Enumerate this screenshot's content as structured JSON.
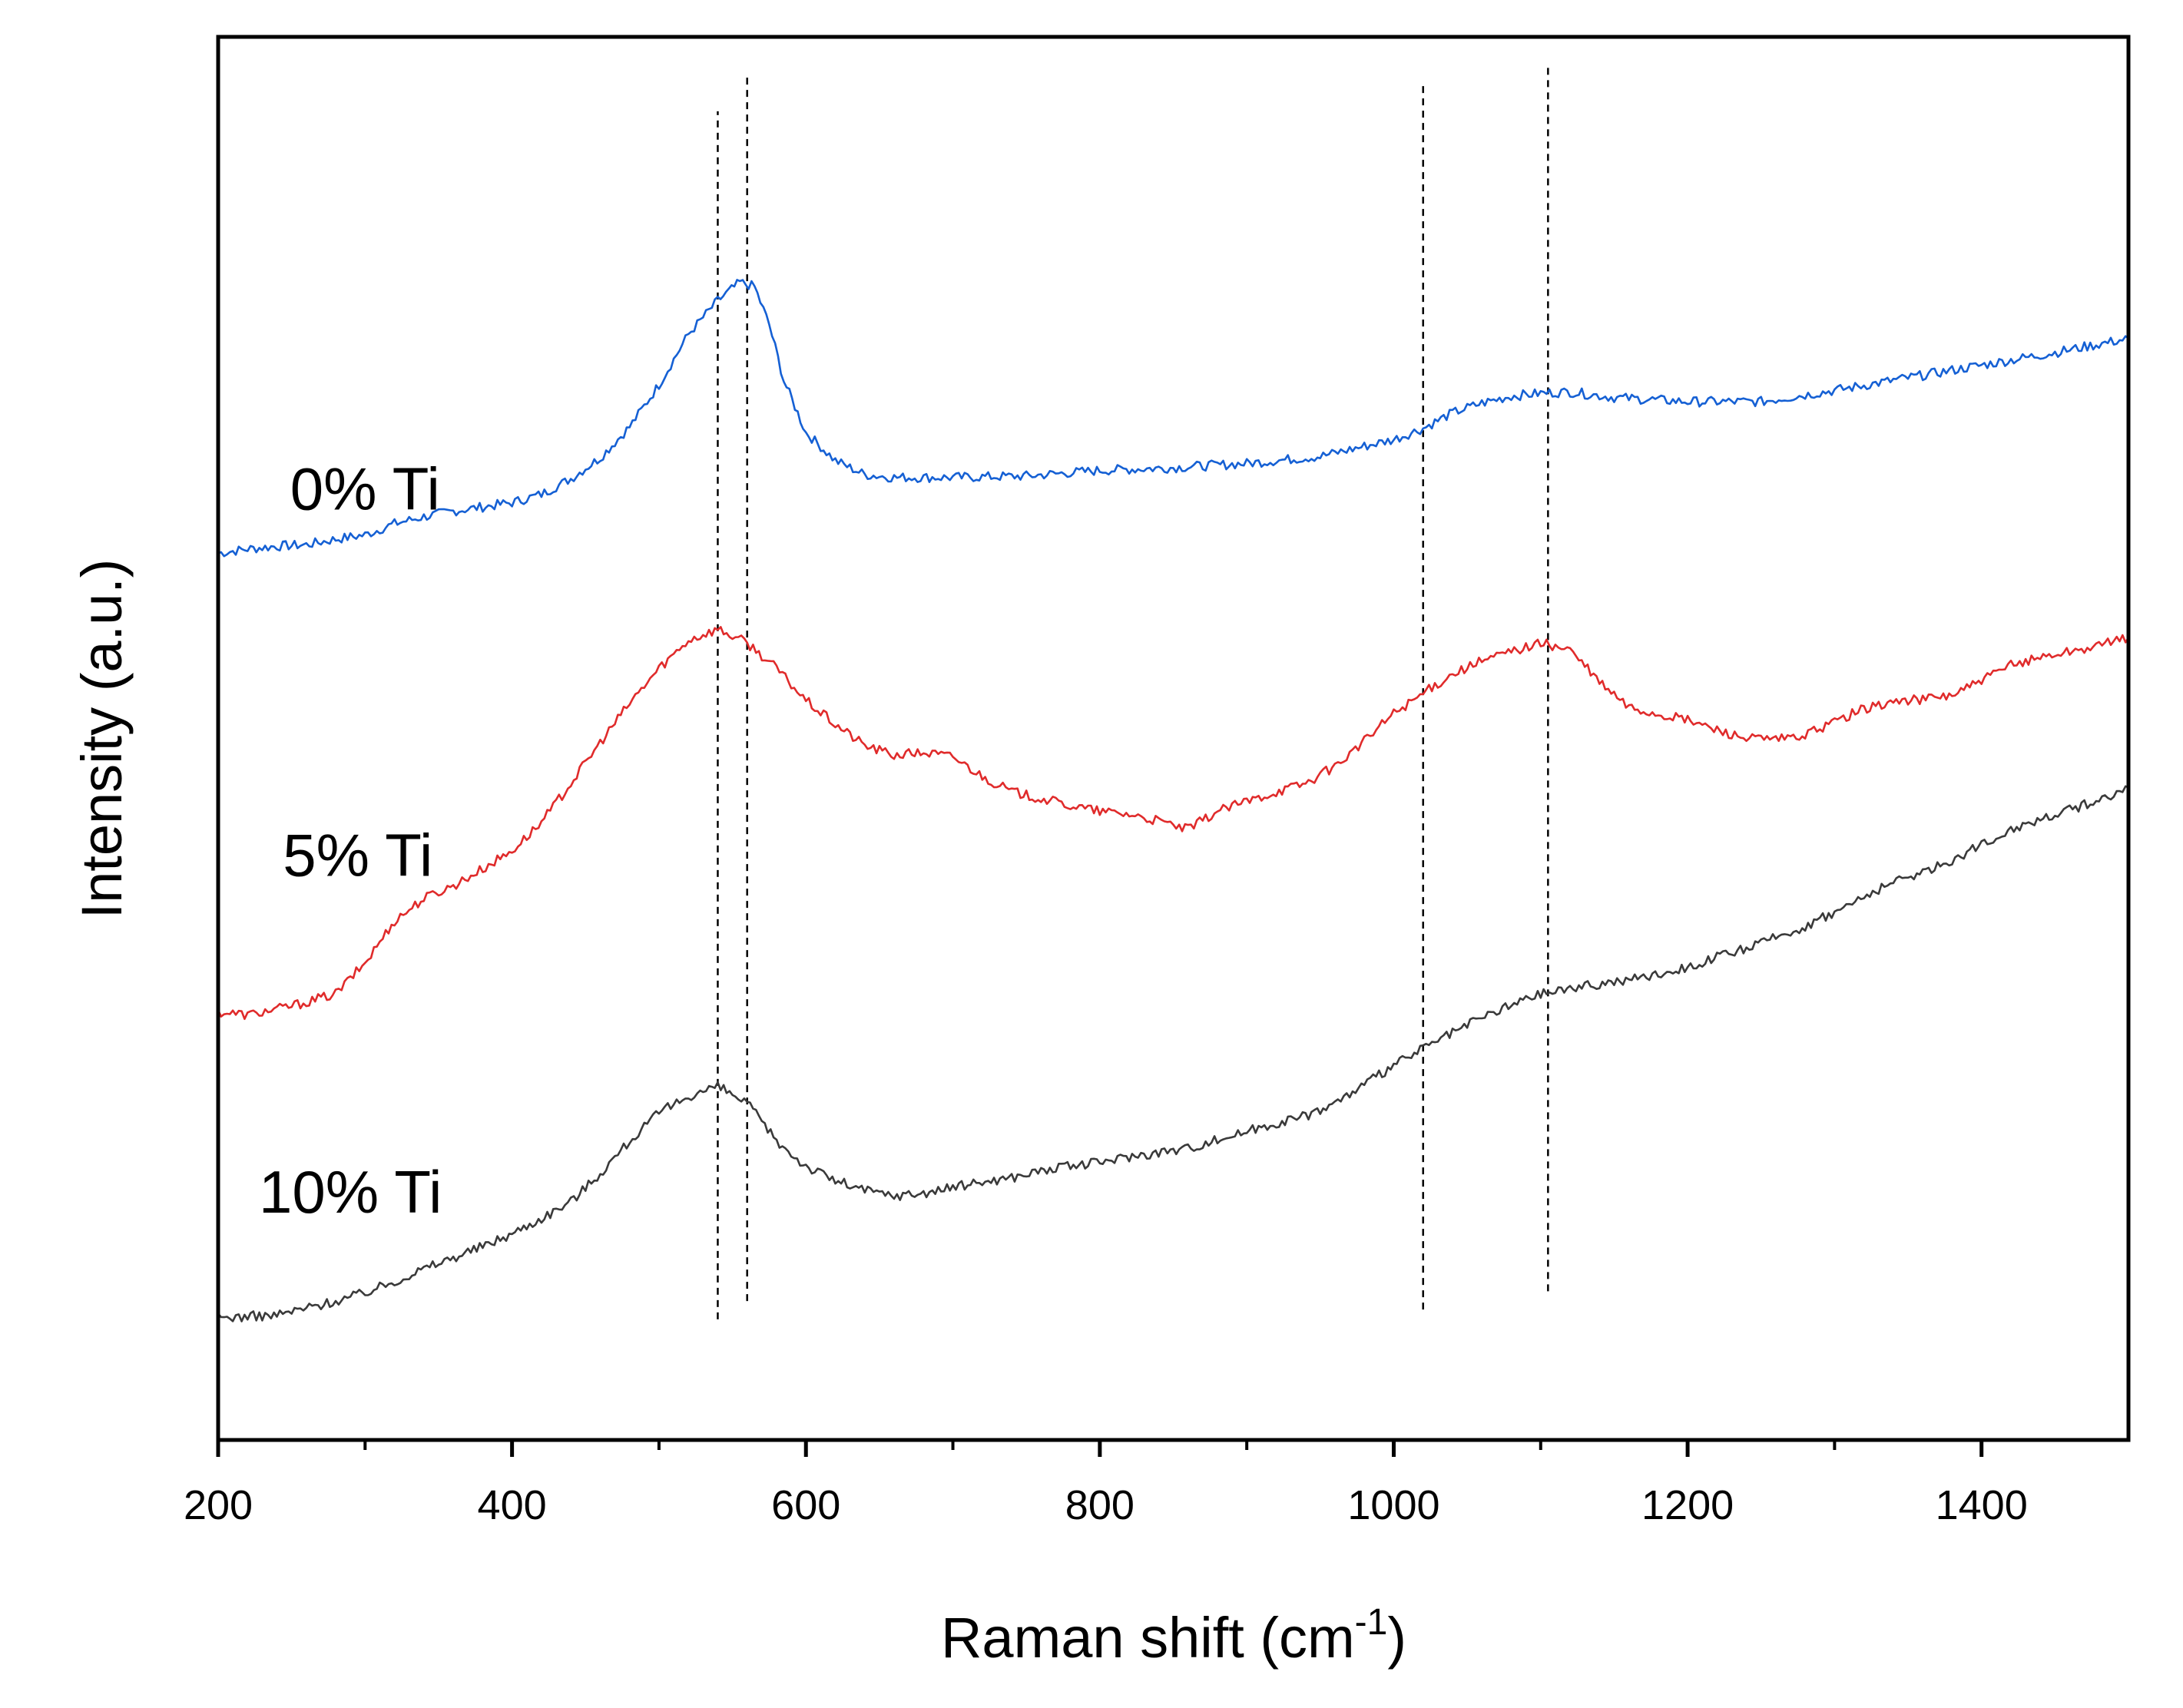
{
  "chart_data": {
    "type": "line",
    "xlabel": "Raman shift (cm",
    "xlabel_sup": "-1",
    "xlabel_end": ")",
    "ylabel": "Intensity (a.u.)",
    "xlim": [
      200,
      1500
    ],
    "ylim": [
      0,
      10
    ],
    "x_ticks": [
      200,
      400,
      600,
      800,
      1000,
      1200,
      1400
    ],
    "x_tick_labels": [
      "200",
      "400",
      "600",
      "800",
      "1000",
      "1200",
      "1400"
    ],
    "x_minor_ticks": [
      300,
      500,
      700,
      900,
      1100,
      1300
    ],
    "y_ticks_shown": false,
    "grid": false,
    "reference_lines": [
      {
        "x": 540,
        "y_range": [
          0.86,
          9.47
        ]
      },
      {
        "x": 560,
        "y_range": [
          0.99,
          9.73
        ]
      },
      {
        "x": 1020,
        "y_range": [
          0.93,
          9.68
        ]
      },
      {
        "x": 1105,
        "y_range": [
          1.06,
          9.78
        ]
      }
    ],
    "series": [
      {
        "name": "0% Ti",
        "color": "#1560d4",
        "label_pos": [
          300,
          6.63
        ],
        "points": [
          [
            200,
            6.32
          ],
          [
            220,
            6.35
          ],
          [
            240,
            6.37
          ],
          [
            260,
            6.38
          ],
          [
            280,
            6.42
          ],
          [
            300,
            6.45
          ],
          [
            320,
            6.53
          ],
          [
            340,
            6.58
          ],
          [
            360,
            6.62
          ],
          [
            380,
            6.65
          ],
          [
            400,
            6.68
          ],
          [
            420,
            6.74
          ],
          [
            440,
            6.85
          ],
          [
            460,
            7.0
          ],
          [
            480,
            7.22
          ],
          [
            500,
            7.52
          ],
          [
            520,
            7.88
          ],
          [
            540,
            8.12
          ],
          [
            555,
            8.25
          ],
          [
            565,
            8.22
          ],
          [
            575,
            7.95
          ],
          [
            585,
            7.55
          ],
          [
            600,
            7.18
          ],
          [
            620,
            6.98
          ],
          [
            640,
            6.88
          ],
          [
            660,
            6.86
          ],
          [
            700,
            6.86
          ],
          [
            750,
            6.87
          ],
          [
            800,
            6.91
          ],
          [
            850,
            6.93
          ],
          [
            900,
            6.96
          ],
          [
            950,
            7.01
          ],
          [
            1000,
            7.13
          ],
          [
            1020,
            7.21
          ],
          [
            1040,
            7.32
          ],
          [
            1060,
            7.39
          ],
          [
            1080,
            7.44
          ],
          [
            1100,
            7.46
          ],
          [
            1120,
            7.47
          ],
          [
            1150,
            7.43
          ],
          [
            1200,
            7.4
          ],
          [
            1250,
            7.4
          ],
          [
            1300,
            7.48
          ],
          [
            1350,
            7.57
          ],
          [
            1400,
            7.66
          ],
          [
            1450,
            7.75
          ],
          [
            1500,
            7.85
          ]
        ]
      },
      {
        "name": "5% Ti",
        "color": "#e02b2b",
        "label_pos": [
          295,
          4.02
        ],
        "points": [
          [
            200,
            3.05
          ],
          [
            220,
            3.03
          ],
          [
            240,
            3.07
          ],
          [
            260,
            3.12
          ],
          [
            280,
            3.18
          ],
          [
            300,
            3.4
          ],
          [
            320,
            3.7
          ],
          [
            340,
            3.86
          ],
          [
            360,
            3.95
          ],
          [
            380,
            4.07
          ],
          [
            400,
            4.2
          ],
          [
            420,
            4.4
          ],
          [
            440,
            4.68
          ],
          [
            460,
            4.97
          ],
          [
            480,
            5.25
          ],
          [
            500,
            5.5
          ],
          [
            520,
            5.7
          ],
          [
            540,
            5.78
          ],
          [
            560,
            5.68
          ],
          [
            580,
            5.5
          ],
          [
            600,
            5.27
          ],
          [
            620,
            5.1
          ],
          [
            640,
            4.95
          ],
          [
            660,
            4.88
          ],
          [
            680,
            4.9
          ],
          [
            700,
            4.87
          ],
          [
            720,
            4.73
          ],
          [
            740,
            4.62
          ],
          [
            760,
            4.57
          ],
          [
            780,
            4.52
          ],
          [
            800,
            4.48
          ],
          [
            820,
            4.46
          ],
          [
            840,
            4.41
          ],
          [
            860,
            4.35
          ],
          [
            880,
            4.48
          ],
          [
            900,
            4.55
          ],
          [
            920,
            4.62
          ],
          [
            940,
            4.68
          ],
          [
            960,
            4.8
          ],
          [
            980,
            4.98
          ],
          [
            1000,
            5.18
          ],
          [
            1020,
            5.32
          ],
          [
            1040,
            5.46
          ],
          [
            1060,
            5.55
          ],
          [
            1080,
            5.62
          ],
          [
            1100,
            5.68
          ],
          [
            1120,
            5.63
          ],
          [
            1140,
            5.4
          ],
          [
            1160,
            5.22
          ],
          [
            1180,
            5.17
          ],
          [
            1200,
            5.13
          ],
          [
            1220,
            5.06
          ],
          [
            1240,
            5.0
          ],
          [
            1260,
            4.99
          ],
          [
            1280,
            5.02
          ],
          [
            1300,
            5.12
          ],
          [
            1320,
            5.21
          ],
          [
            1340,
            5.26
          ],
          [
            1360,
            5.28
          ],
          [
            1380,
            5.31
          ],
          [
            1400,
            5.41
          ],
          [
            1420,
            5.52
          ],
          [
            1440,
            5.58
          ],
          [
            1460,
            5.62
          ],
          [
            1480,
            5.66
          ],
          [
            1500,
            5.72
          ]
        ]
      },
      {
        "name": "10% Ti",
        "color": "#3a3a3a",
        "label_pos": [
          290,
          1.62
        ],
        "points": [
          [
            200,
            0.87
          ],
          [
            220,
            0.88
          ],
          [
            240,
            0.89
          ],
          [
            260,
            0.94
          ],
          [
            280,
            0.99
          ],
          [
            300,
            1.05
          ],
          [
            320,
            1.13
          ],
          [
            340,
            1.22
          ],
          [
            360,
            1.3
          ],
          [
            380,
            1.38
          ],
          [
            400,
            1.47
          ],
          [
            420,
            1.58
          ],
          [
            440,
            1.7
          ],
          [
            460,
            1.9
          ],
          [
            480,
            2.13
          ],
          [
            500,
            2.33
          ],
          [
            520,
            2.45
          ],
          [
            540,
            2.52
          ],
          [
            560,
            2.4
          ],
          [
            580,
            2.13
          ],
          [
            600,
            1.95
          ],
          [
            620,
            1.85
          ],
          [
            640,
            1.78
          ],
          [
            660,
            1.74
          ],
          [
            680,
            1.76
          ],
          [
            700,
            1.8
          ],
          [
            720,
            1.84
          ],
          [
            740,
            1.87
          ],
          [
            760,
            1.92
          ],
          [
            780,
            1.95
          ],
          [
            800,
            1.98
          ],
          [
            820,
            2.02
          ],
          [
            840,
            2.05
          ],
          [
            860,
            2.08
          ],
          [
            880,
            2.14
          ],
          [
            900,
            2.2
          ],
          [
            920,
            2.26
          ],
          [
            940,
            2.31
          ],
          [
            960,
            2.4
          ],
          [
            980,
            2.53
          ],
          [
            1000,
            2.67
          ],
          [
            1020,
            2.79
          ],
          [
            1040,
            2.9
          ],
          [
            1060,
            3.01
          ],
          [
            1080,
            3.1
          ],
          [
            1100,
            3.18
          ],
          [
            1120,
            3.22
          ],
          [
            1140,
            3.25
          ],
          [
            1160,
            3.28
          ],
          [
            1180,
            3.32
          ],
          [
            1200,
            3.37
          ],
          [
            1220,
            3.44
          ],
          [
            1240,
            3.5
          ],
          [
            1260,
            3.58
          ],
          [
            1280,
            3.66
          ],
          [
            1300,
            3.76
          ],
          [
            1320,
            3.87
          ],
          [
            1340,
            3.97
          ],
          [
            1360,
            4.05
          ],
          [
            1380,
            4.13
          ],
          [
            1400,
            4.24
          ],
          [
            1420,
            4.35
          ],
          [
            1440,
            4.43
          ],
          [
            1460,
            4.49
          ],
          [
            1480,
            4.56
          ],
          [
            1500,
            4.65
          ]
        ]
      }
    ]
  }
}
